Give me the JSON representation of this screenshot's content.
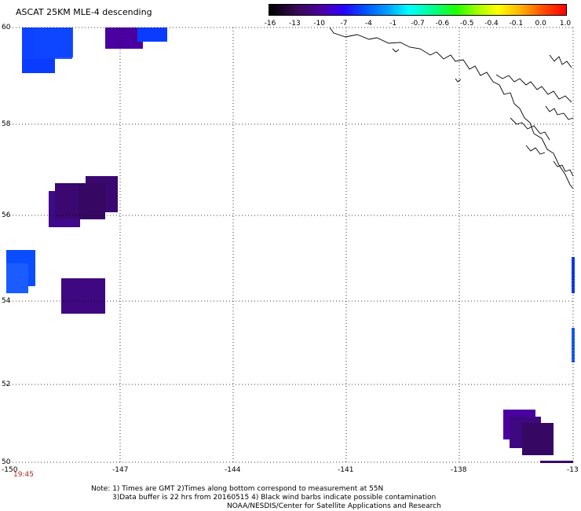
{
  "title": "ASCAT 25KM MLE-4 descending",
  "colorbar": {
    "labels": [
      "-16",
      "-13",
      "-10",
      "-7",
      "-4",
      "-1",
      "-0.7",
      "-0.6",
      "-0.5",
      "-0.4",
      "-0.1",
      "0.0",
      "1.0"
    ]
  },
  "axes": {
    "y_labels": [
      "60",
      "58",
      "56",
      "54",
      "52",
      "50"
    ],
    "x_labels": [
      "-150",
      "-147",
      "-144",
      "-141",
      "-138",
      "-13"
    ]
  },
  "time_label": "19:45",
  "notes": {
    "line1": "Note: 1) Times are GMT 2)Times along bottom correspond to measurement at 55N",
    "line2": "3)Data buffer is 22 hrs from 20160515 4) Black wind barbs indicate possible contamination",
    "line3": "NOAA/NESDIS/Center for Satellite Applications and Research"
  },
  "colors": {
    "purple": "#4a00a0",
    "dark_purple": "#3a0870",
    "blue": "#0a3cff",
    "light_blue": "#1a5cff"
  }
}
